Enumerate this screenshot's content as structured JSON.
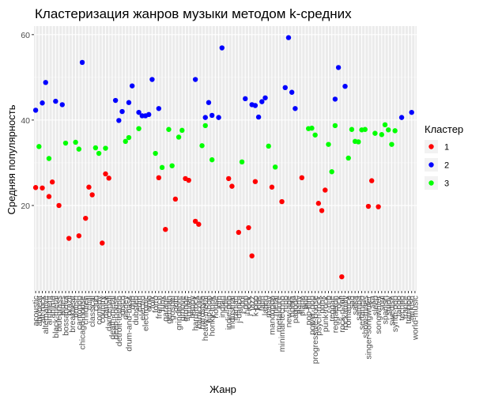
{
  "chart_data": {
    "type": "scatter",
    "title": "Кластеризация жанров музыки методом k-средних",
    "xlabel": "Жанр",
    "ylabel": "Средняя популярность",
    "ylim": [
      0,
      62
    ],
    "yticks": [
      20,
      40,
      60
    ],
    "grid": true,
    "legend": {
      "title": "Кластер",
      "position": "right",
      "entries": [
        {
          "name": "1",
          "color": "#ff0000"
        },
        {
          "name": "2",
          "color": "#0000ff"
        },
        {
          "name": "3",
          "color": "#00ff00"
        }
      ]
    },
    "categories": [
      "acoustic",
      "afrobeat",
      "alt-rock",
      "alternative",
      "ambient",
      "anime",
      "black-metal",
      "bluegrass",
      "blues",
      "bossanova",
      "brazil",
      "breakbeat",
      "british",
      "cantopop",
      "chicago-house",
      "children",
      "chill",
      "classical",
      "club",
      "comedy",
      "country",
      "dance",
      "dancehall",
      "death-metal",
      "deep-house",
      "detroit-techno",
      "disco",
      "disney",
      "drum-and-bass",
      "dub",
      "dubstep",
      "edm",
      "electro",
      "electronic",
      "emo",
      "folk",
      "forro",
      "french",
      "funk",
      "garage",
      "german",
      "gospel",
      "goth",
      "grindcore",
      "groove",
      "grunge",
      "guitar",
      "happy",
      "hard-rock",
      "hardcore",
      "hardstyle",
      "heavy-metal",
      "hip-hop",
      "honky-tonk",
      "house",
      "idm",
      "indian",
      "indie",
      "indie-pop",
      "industrial",
      "iranian",
      "j-dance",
      "j-idol",
      "j-pop",
      "j-rock",
      "jazz",
      "k-pop",
      "kids",
      "latin",
      "latino",
      "malay",
      "mandopop",
      "metal",
      "metalcore",
      "minimal-techno",
      "mpb",
      "new-age",
      "opera",
      "pagode",
      "party",
      "piano",
      "pop",
      "pop-film",
      "power-pop",
      "progressive-house",
      "psych-rock",
      "punk",
      "punk-rock",
      "r-n-b",
      "reggae",
      "reggaeton",
      "rock",
      "rock-n-roll",
      "rockabilly",
      "romance",
      "sad",
      "salsa",
      "samba",
      "sertanejo",
      "show-tunes",
      "singer-songwriter",
      "ska",
      "sleep",
      "songwriter",
      "soul",
      "spanish",
      "study",
      "swedish",
      "synth-pop",
      "tango",
      "techno",
      "trance",
      "trip-hop",
      "turkish",
      "world-music"
    ],
    "series": [
      {
        "name": "1",
        "color": "#ff0000",
        "points": [
          [
            "acoustic",
            24.2
          ],
          [
            "alt-rock",
            24.1
          ],
          [
            "ambient",
            22.1
          ],
          [
            "anime",
            25.5
          ],
          [
            "bluegrass",
            20.0
          ],
          [
            "brazil",
            12.3
          ],
          [
            "cantopop",
            12.9
          ],
          [
            "chill",
            24.3
          ],
          [
            "children",
            17.0
          ],
          [
            "classical",
            22.5
          ],
          [
            "country",
            11.2
          ],
          [
            "dance",
            27.4
          ],
          [
            "dancehall",
            26.4
          ],
          [
            "french",
            26.5
          ],
          [
            "garage",
            14.4
          ],
          [
            "goth",
            21.5
          ],
          [
            "grunge",
            26.3
          ],
          [
            "guitar",
            25.9
          ],
          [
            "hard-rock",
            16.3
          ],
          [
            "hardcore",
            15.6
          ],
          [
            "indie-pop",
            26.3
          ],
          [
            "industrial",
            24.5
          ],
          [
            "j-dance",
            13.7
          ],
          [
            "j-rock",
            14.8
          ],
          [
            "jazz",
            8.2
          ],
          [
            "k-pop",
            25.6
          ],
          [
            "mandopop",
            24.3
          ],
          [
            "minimal-techno",
            20.9
          ],
          [
            "piano",
            26.5
          ],
          [
            "psych-rock",
            20.5
          ],
          [
            "punk",
            18.8
          ],
          [
            "punk-rock",
            23.6
          ],
          [
            "rock-n-roll",
            3.3
          ],
          [
            "singer-songwriter",
            19.8
          ],
          [
            "ska",
            25.8
          ],
          [
            "songwriter",
            19.7
          ]
        ]
      },
      {
        "name": "2",
        "color": "#0000ff",
        "points": [
          [
            "acoustic",
            42.3
          ],
          [
            "alt-rock",
            44.0
          ],
          [
            "alternative",
            48.8
          ],
          [
            "black-metal",
            44.4
          ],
          [
            "blues",
            43.6
          ],
          [
            "chicago-house",
            53.5
          ],
          [
            "deep-house",
            44.6
          ],
          [
            "detroit-techno",
            39.9
          ],
          [
            "disco",
            42.0
          ],
          [
            "drum-and-bass",
            44.1
          ],
          [
            "dub",
            48.0
          ],
          [
            "edm",
            41.8
          ],
          [
            "electro",
            41.0
          ],
          [
            "electronic",
            41.0
          ],
          [
            "emo",
            41.3
          ],
          [
            "folk",
            49.5
          ],
          [
            "french",
            42.7
          ],
          [
            "hard-rock",
            49.5
          ],
          [
            "heavy-metal",
            40.6
          ],
          [
            "hip-hop",
            44.1
          ],
          [
            "honky-tonk",
            41.1
          ],
          [
            "idm",
            40.6
          ],
          [
            "indian",
            56.9
          ],
          [
            "j-pop",
            45.0
          ],
          [
            "jazz",
            43.6
          ],
          [
            "k-pop",
            43.4
          ],
          [
            "kids",
            40.7
          ],
          [
            "latin",
            44.3
          ],
          [
            "latino",
            45.2
          ],
          [
            "mpb",
            47.6
          ],
          [
            "new-age",
            59.3
          ],
          [
            "opera",
            46.5
          ],
          [
            "pagode",
            42.7
          ],
          [
            "reggaeton",
            44.9
          ],
          [
            "rock",
            52.3
          ],
          [
            "rockabilly",
            47.9
          ],
          [
            "techno",
            40.6
          ],
          [
            "turkish",
            41.8
          ]
        ]
      },
      {
        "name": "3",
        "color": "#00ff00",
        "points": [
          [
            "afrobeat",
            33.8
          ],
          [
            "ambient",
            31.0
          ],
          [
            "bossanova",
            34.6
          ],
          [
            "british",
            34.8
          ],
          [
            "cantopop",
            33.2
          ],
          [
            "club",
            33.5
          ],
          [
            "comedy",
            32.2
          ],
          [
            "dance",
            33.4
          ],
          [
            "disney",
            35.0
          ],
          [
            "drum-and-bass",
            35.9
          ],
          [
            "edm",
            38.0
          ],
          [
            "forro",
            32.2
          ],
          [
            "funk",
            28.9
          ],
          [
            "german",
            37.8
          ],
          [
            "gospel",
            29.3
          ],
          [
            "grindcore",
            36.0
          ],
          [
            "groove",
            37.6
          ],
          [
            "hardstyle",
            34.0
          ],
          [
            "heavy-metal",
            38.7
          ],
          [
            "honky-tonk",
            30.7
          ],
          [
            "j-idol",
            30.2
          ],
          [
            "malay",
            33.9
          ],
          [
            "metal",
            29.0
          ],
          [
            "pop-film",
            38.0
          ],
          [
            "power-pop",
            38.1
          ],
          [
            "progressive-house",
            36.5
          ],
          [
            "r-n-b",
            34.3
          ],
          [
            "reggae",
            27.9
          ],
          [
            "reggaeton",
            38.7
          ],
          [
            "romance",
            31.1
          ],
          [
            "sad",
            37.8
          ],
          [
            "salsa",
            35.0
          ],
          [
            "samba",
            34.9
          ],
          [
            "sertanejo",
            37.7
          ],
          [
            "show-tunes",
            37.8
          ],
          [
            "sleep",
            36.9
          ],
          [
            "soul",
            36.6
          ],
          [
            "spanish",
            38.9
          ],
          [
            "study",
            37.7
          ],
          [
            "swedish",
            34.3
          ],
          [
            "synth-pop",
            37.5
          ]
        ]
      }
    ]
  }
}
